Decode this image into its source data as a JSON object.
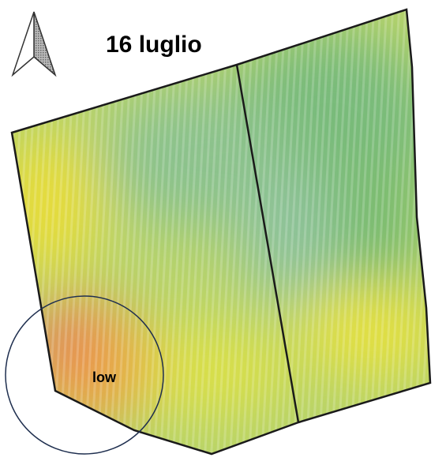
{
  "title": "16 luglio",
  "annotation": "low"
}
